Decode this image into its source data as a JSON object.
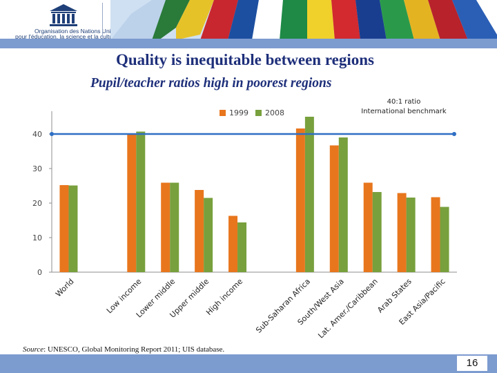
{
  "header": {
    "org_line1": "Organisation des Nations Unies",
    "org_line2": "pour l'éducation, la science et la culture",
    "logo_text": "UNESCO"
  },
  "title": "Quality is inequitable between regions",
  "subtitle": "Pupil/teacher ratios high in poorest regions",
  "benchmark_label": {
    "line1": "40:1 ratio",
    "line2": "International benchmark"
  },
  "source": {
    "prefix": "Source",
    "text": ": UNESCO, Global Monitoring Report 2011; UIS database."
  },
  "page_number": "16",
  "colors": {
    "series_1999": "#e8761d",
    "series_2008": "#78a03d",
    "benchmark": "#2f6fc4",
    "title": "#1e2f7a",
    "bars": "#7c9bcf"
  },
  "chart_data": {
    "type": "bar",
    "categories": [
      "World",
      "",
      "Low income",
      "Lower middle",
      "Upper middle",
      "High income",
      "",
      "Sub-Saharan Africa",
      "South/West Asia",
      "Lat. Amer./Caribbean",
      "Arab States",
      "East Asia/Pacific"
    ],
    "series": [
      {
        "name": "1999",
        "values": [
          25.2,
          null,
          40.1,
          25.9,
          23.8,
          16.3,
          null,
          41.6,
          36.7,
          25.9,
          22.9,
          21.7
        ]
      },
      {
        "name": "2008",
        "values": [
          25.1,
          null,
          40.7,
          25.9,
          21.5,
          14.4,
          null,
          45.0,
          39.0,
          23.2,
          21.6,
          18.9
        ]
      }
    ],
    "benchmark": 40,
    "ylim": [
      0,
      45
    ],
    "yticks": [
      0,
      10,
      20,
      30,
      40
    ],
    "xlabel": "",
    "ylabel": "",
    "legend_position": "top",
    "grid": false
  }
}
